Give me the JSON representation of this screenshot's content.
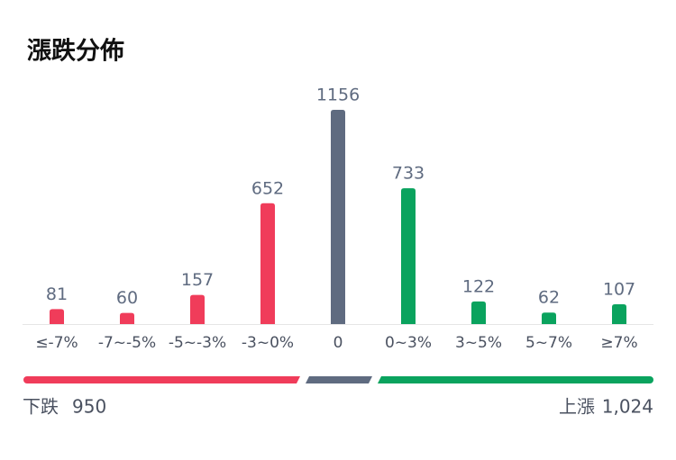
{
  "chart_data": {
    "type": "bar",
    "title": "漲跌分佈",
    "categories": [
      "≤-7%",
      "-7~-5%",
      "-5~-3%",
      "-3~0%",
      "0",
      "0~3%",
      "3~5%",
      "5~7%",
      "≥7%"
    ],
    "values": [
      81,
      60,
      157,
      652,
      1156,
      733,
      122,
      62,
      107
    ],
    "colors": [
      "#f03c5a",
      "#f03c5a",
      "#f03c5a",
      "#f03c5a",
      "#5f6b80",
      "#0aa35e",
      "#0aa35e",
      "#0aa35e",
      "#0aa35e"
    ]
  },
  "summary": {
    "down_label": "下跌",
    "down_count": "950",
    "up_label": "上漲",
    "up_count": "1,024"
  }
}
